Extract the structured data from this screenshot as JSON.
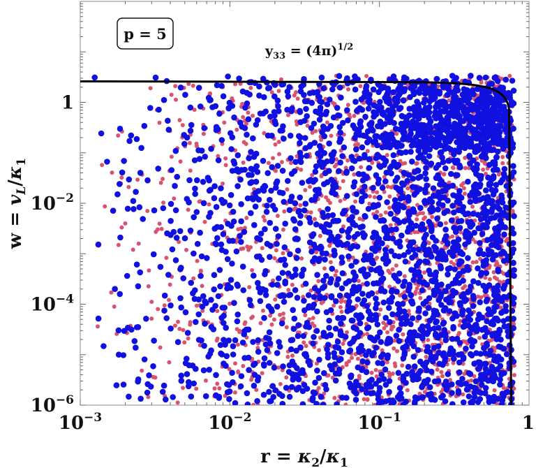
{
  "chart_data": {
    "type": "scatter",
    "xscale": "log",
    "yscale": "log",
    "xlim": [
      0.001,
      1
    ],
    "ylim": [
      1e-06,
      100
    ],
    "xticks": [
      {
        "mant": "10",
        "exp": "−3"
      },
      {
        "mant": "10",
        "exp": "−2"
      },
      {
        "mant": "10",
        "exp": "−1"
      },
      {
        "mant": "1",
        "exp": ""
      }
    ],
    "yticks": [
      {
        "mant": "1",
        "exp": ""
      },
      {
        "mant": "10",
        "exp": "−2"
      },
      {
        "mant": "10",
        "exp": "−4"
      },
      {
        "mant": "10",
        "exp": "−6"
      }
    ],
    "xlabel": "r = κ₂/κ₁",
    "ylabel": "w = v_L/κ₁",
    "legend_box": "p = 5",
    "curve_label": "y₃₃ = (4π)^1/2",
    "colors": {
      "blue": "#1010e0",
      "red": "#d8546e",
      "curve": "#000000"
    },
    "series": [
      {
        "color": "blue",
        "approx_count": 2400
      },
      {
        "color": "red",
        "approx_count": 1600
      }
    ],
    "boundary_curve": {
      "y_plateau": 2.6,
      "x_vertical": 0.76
    }
  }
}
